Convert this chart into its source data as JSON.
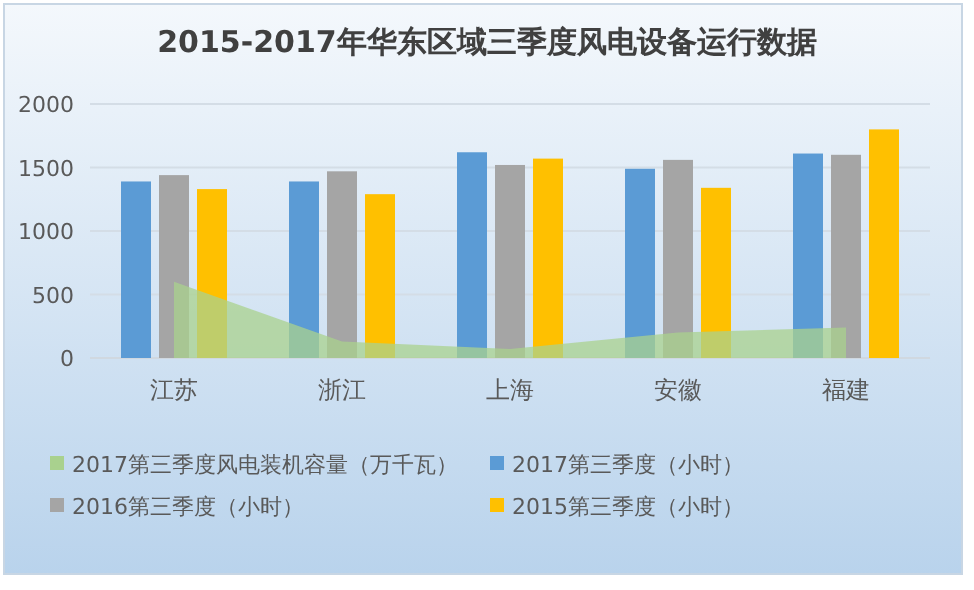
{
  "chart_data": {
    "type": "bar",
    "title": "2015-2017年华东区域三季度风电设备运行数据",
    "categories": [
      "江苏",
      "浙江",
      "上海",
      "安徽",
      "福建"
    ],
    "series": [
      {
        "name": "2017第三季度风电装机容量（万千瓦）",
        "type": "area",
        "color": "#a9d18e",
        "values": [
          600,
          130,
          70,
          200,
          240
        ]
      },
      {
        "name": "2017第三季度（小时）",
        "color": "#5b9bd5",
        "values": [
          1390,
          1390,
          1620,
          1490,
          1610
        ]
      },
      {
        "name": "2016第三季度（小时）",
        "color": "#a5a5a5",
        "values": [
          1440,
          1470,
          1520,
          1560,
          1600
        ]
      },
      {
        "name": "2015第三季度（小时）",
        "color": "#ffc000",
        "values": [
          1330,
          1290,
          1570,
          1340,
          1800
        ]
      }
    ],
    "ylim": [
      0,
      2000
    ],
    "yticks": [
      0,
      500,
      1000,
      1500,
      2000
    ],
    "grid": "y",
    "legend": "bottom"
  }
}
